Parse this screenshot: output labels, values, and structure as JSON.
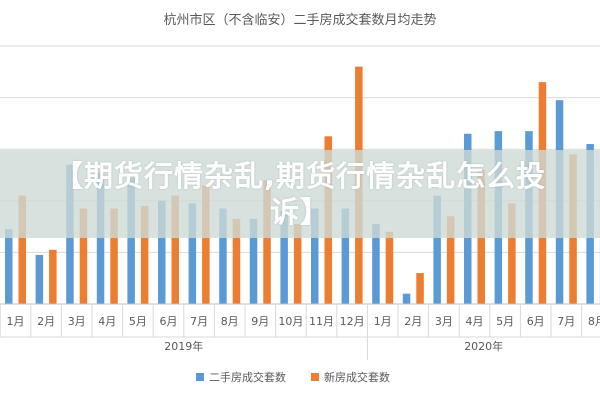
{
  "banner": {
    "text": "【期货行情杂乱,期货行情杂乱怎么投诉】"
  },
  "colors": {
    "series_1": "#5b9bd5",
    "series_2": "#ed7d31",
    "grid": "#d9d9d9",
    "text": "#595959"
  },
  "chart_data": {
    "type": "bar",
    "title": "杭州市区（不含临安）二手房成交套数月均走势",
    "xlabel": "",
    "ylabel": "",
    "legend_position": "bottom",
    "grid": true,
    "ylim": [
      0,
      100
    ],
    "categories": [
      "1月",
      "2月",
      "3月",
      "4月",
      "5月",
      "6月",
      "7月",
      "8月",
      "9月",
      "10月",
      "11月",
      "12月",
      "1月",
      "2月",
      "3月",
      "4月",
      "5月",
      "6月",
      "7月",
      "8月"
    ],
    "groups": [
      {
        "label": "2019年",
        "start": 0,
        "end": 11
      },
      {
        "label": "2020年",
        "start": 12,
        "end": 19
      }
    ],
    "series": [
      {
        "name": "二手房成交套数",
        "values": [
          29,
          19,
          54,
          51,
          49,
          40,
          39,
          37,
          33,
          36,
          37,
          37,
          31,
          4,
          42,
          66,
          67,
          67,
          79,
          62
        ]
      },
      {
        "name": "新房成交套数",
        "values": [
          42,
          21,
          37,
          37,
          38,
          42,
          46,
          33,
          48,
          31,
          65,
          92,
          28,
          12,
          34,
          52,
          39,
          86,
          58,
          53
        ]
      }
    ]
  }
}
